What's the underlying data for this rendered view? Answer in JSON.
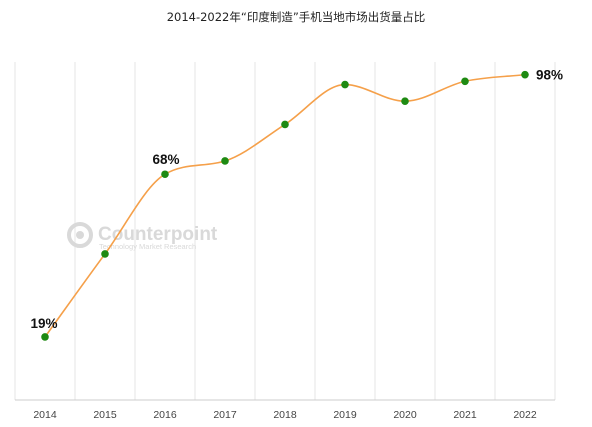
{
  "chart_data": {
    "type": "line",
    "title": "2014-2022年“印度制造”手机当地市场出货量占比",
    "x": [
      "2014",
      "2015",
      "2016",
      "2017",
      "2018",
      "2019",
      "2020",
      "2021",
      "2022"
    ],
    "series": [
      {
        "values": [
          19,
          44,
          68,
          72,
          83,
          95,
          90,
          96,
          98
        ]
      }
    ],
    "data_labels": [
      {
        "index": 0,
        "text": "19%"
      },
      {
        "index": 2,
        "text": "68%"
      },
      {
        "index": 8,
        "text": "98%"
      }
    ],
    "ylim": [
      0,
      100
    ],
    "grid": "vertical",
    "line_color": "#f5a04a",
    "marker_color": "#1e8a12",
    "legend": "none"
  },
  "watermark": {
    "brand": "Counterpoint",
    "tagline": "Technology Market Research"
  }
}
